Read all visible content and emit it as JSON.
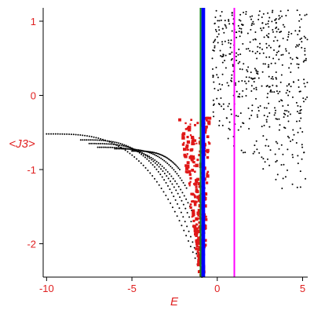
{
  "chart_data": {
    "type": "scatter",
    "title": "",
    "xlabel": "E",
    "ylabel": "<J3>",
    "xlim": [
      -10.2,
      5.3
    ],
    "ylim": [
      -2.45,
      1.18
    ],
    "xticks": [
      -10,
      -5,
      0,
      5
    ],
    "yticks": [
      1,
      0,
      -1,
      -2
    ],
    "xtick_labels": [
      "-10",
      "-5",
      "0",
      "5"
    ],
    "ytick_labels": [
      "1",
      "0",
      "-1",
      "-2"
    ],
    "grid": false,
    "vertical_lines": [
      {
        "x": -0.98,
        "color": "#138a13"
      },
      {
        "x": -0.86,
        "color": "#0000ff"
      },
      {
        "x": -0.78,
        "color": "#0000ff"
      },
      {
        "x": 1.0,
        "color": "#ff00ff"
      }
    ],
    "series": [
      {
        "color": "#000000",
        "marker": "dot",
        "description_branches": [
          {
            "x_start": -10.0,
            "x_end": -0.9,
            "y_start": -0.52,
            "y_end": -2.45
          },
          {
            "x_start": -8.0,
            "x_end": -1.0,
            "y_start": -0.6,
            "y_end": -2.3
          },
          {
            "x_start": -7.5,
            "x_end": -1.2,
            "y_start": -0.65,
            "y_end": -1.9
          },
          {
            "x_start": -7.0,
            "x_end": -1.5,
            "y_start": -0.7,
            "y_end": -1.55
          },
          {
            "x_start": -6.0,
            "x_end": -1.8,
            "y_start": -0.72,
            "y_end": -1.25
          },
          {
            "x_start": -5.0,
            "x_end": -2.2,
            "y_start": -0.75,
            "y_end": -1.0
          }
        ],
        "cloud": {
          "x_range": [
            -0.3,
            5.3
          ],
          "y_range": [
            -1.35,
            1.15
          ]
        }
      },
      {
        "color": "#e01818",
        "marker": "square",
        "region": {
          "x_range": [
            -3.0,
            0.6
          ],
          "y_range": [
            -2.45,
            -0.3
          ]
        }
      }
    ]
  }
}
